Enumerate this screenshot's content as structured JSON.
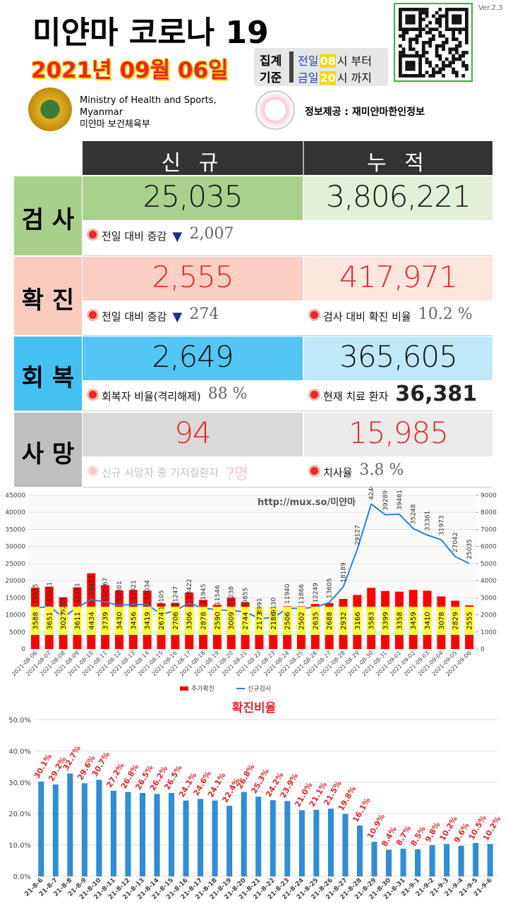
{
  "header": {
    "title": "미얀마 코로나 19",
    "date": "2021년 09월 06일",
    "version": "Ver.2.3",
    "basis": [
      "집계",
      "기준"
    ],
    "from": [
      "전일",
      "08",
      "시 부터"
    ],
    "to": [
      "금일",
      "20",
      "시 까지"
    ]
  },
  "ministry": {
    "lines": [
      "Ministry of Health and Sports,",
      "Myanmar",
      "미얀마 보건체육부"
    ]
  },
  "source": "정보제공 : 재미얀마한인정보",
  "table": {
    "headers": [
      "신 규",
      "누 적"
    ],
    "rows": [
      {
        "label": "검 사",
        "new": "25,035",
        "total": "3,806,221",
        "notes": [
          {
            "text": "전일 대비 증감",
            "marker": "▼",
            "value": "2,007"
          }
        ]
      },
      {
        "label": "확 진",
        "new": "2,555",
        "total": "417,971",
        "notes": [
          {
            "text": "전일 대비 증감",
            "marker": "▼",
            "value": "274"
          },
          {
            "text": "검사 대비 확진 비율",
            "value": "10.2 %"
          }
        ]
      },
      {
        "label": "회 복",
        "new": "2,649",
        "total": "365,605",
        "notes": [
          {
            "text": "회복자 비율(격리해제)",
            "value": "88 %"
          },
          {
            "text": "현재 치료 환자",
            "value": "36,381"
          }
        ]
      },
      {
        "label": "사 망",
        "new": "94",
        "total": "15,985",
        "notes": [
          {
            "text": "신규 사망자 중 기저질환자",
            "value": "?명"
          },
          {
            "text": "치사율",
            "value": "3.8 %"
          }
        ]
      }
    ]
  },
  "chart_data": [
    {
      "type": "combo",
      "annotation": "http://mux.so/미얀마",
      "categories": [
        "2021-08-06",
        "2021-08-07",
        "2021-08-08",
        "2021-08-09",
        "2021-08-10",
        "2021-08-11",
        "2021-08-12",
        "2021-08-13",
        "2021-08-14",
        "2021-08-15",
        "2021-08-16",
        "2021-08-17",
        "2021-08-18",
        "2021-08-19",
        "2021-08-20",
        "2021-08-21",
        "2021-08-22",
        "2021-08-23",
        "2021-08-24",
        "2021-08-25",
        "2021-08-26",
        "2021-08-27",
        "2021-08-28",
        "2021-08-29",
        "2021-08-30",
        "2021-08-31",
        "2021-09-01",
        "2021-09-02",
        "2021-09-03",
        "2021-09-04",
        "2021-09-05",
        "2021-09-06"
      ],
      "series": [
        {
          "name": "추가확진",
          "type": "bar",
          "axis": "y2",
          "color": "#ff0000",
          "values": [
            3588,
            3651,
            3027,
            3611,
            4434,
            3739,
            3430,
            3456,
            3419,
            2674,
            2706,
            3306,
            2878,
            2590,
            3009,
            2744,
            2173,
            2186,
            2506,
            2502,
            2635,
            2688,
            2932,
            3166,
            3583,
            3399,
            3358,
            3459,
            3410,
            3078,
            2829,
            2555
          ]
        },
        {
          "name": "신규검사",
          "type": "line",
          "axis": "y",
          "color": "#2f7fd6",
          "values": [
            11935,
            12511,
            9269,
            12191,
            14457,
            13767,
            12801,
            13021,
            13034,
            10105,
            11247,
            13422,
            11945,
            11546,
            11238,
            10855,
            8991,
            9130,
            11940,
            11866,
            12249,
            13605,
            18189,
            29127,
            42400,
            39289,
            39461,
            35248,
            33361,
            31973,
            27042,
            25035
          ]
        }
      ],
      "ylim": [
        0,
        45000
      ],
      "yticks": [
        0,
        5000,
        10000,
        15000,
        20000,
        25000,
        30000,
        35000,
        40000,
        45000
      ],
      "y2lim": [
        0,
        9000
      ],
      "y2ticks": [
        0,
        1000,
        2000,
        3000,
        4000,
        5000,
        6000,
        7000,
        8000,
        9000
      ],
      "grid": true
    },
    {
      "type": "bar",
      "title": "확진비율",
      "categories": [
        "21-8-6",
        "21-8-7",
        "21-8-8",
        "21-8-9",
        "21-8-10",
        "21-8-11",
        "21-8-12",
        "21-8-13",
        "21-8-14",
        "21-8-15",
        "21-8-16",
        "21-8-17",
        "21-8-18",
        "21-8-19",
        "21-8-20",
        "21-8-21",
        "21-8-22",
        "21-8-23",
        "21-8-24",
        "21-8-25",
        "21-8-26",
        "21-8-27",
        "21-8-28",
        "21-8-29",
        "21-8-30",
        "21-8-31",
        "21-9-1",
        "21-9-2",
        "21-9-3",
        "21-9-4",
        "21-9-5",
        "21-9-6"
      ],
      "values": [
        30.1,
        29.2,
        32.7,
        29.6,
        30.7,
        27.2,
        26.8,
        26.5,
        26.2,
        26.5,
        24.1,
        24.6,
        24.1,
        22.4,
        26.8,
        25.3,
        24.2,
        23.9,
        21.0,
        21.1,
        21.5,
        19.8,
        16.1,
        10.9,
        8.4,
        8.7,
        8.5,
        9.8,
        10.2,
        9.6,
        10.5,
        10.2
      ],
      "value_labels": [
        "30.1%",
        "29.2%",
        "32.7%",
        "29.6%",
        "30.7%",
        "27.2%",
        "26.8%",
        "26.5%",
        "26.2%",
        "26.5%",
        "24.1%",
        "24.6%",
        "24.1%",
        "22.4%",
        "26.8%",
        "25.3%",
        "24.2%",
        "23.9%",
        "21.0%",
        "21.1%",
        "21.5%",
        "19.8%",
        "16.1%",
        "10.9%",
        "8.4%",
        "8.7%",
        "8.5%",
        "9.8%",
        "10.2%",
        "9.6%",
        "10.5%",
        "10.2%"
      ],
      "color": "#2e8fd8",
      "ylim": [
        0,
        50
      ],
      "yticks": [
        {
          "value": 0,
          "label": "0.0%"
        },
        {
          "value": 10,
          "label": "10.0%"
        },
        {
          "value": 20,
          "label": "20.0%"
        },
        {
          "value": 30,
          "label": "30.0%"
        },
        {
          "value": 40,
          "label": "40.0%"
        },
        {
          "value": 50,
          "label": "50.0%"
        }
      ],
      "grid": true
    }
  ]
}
